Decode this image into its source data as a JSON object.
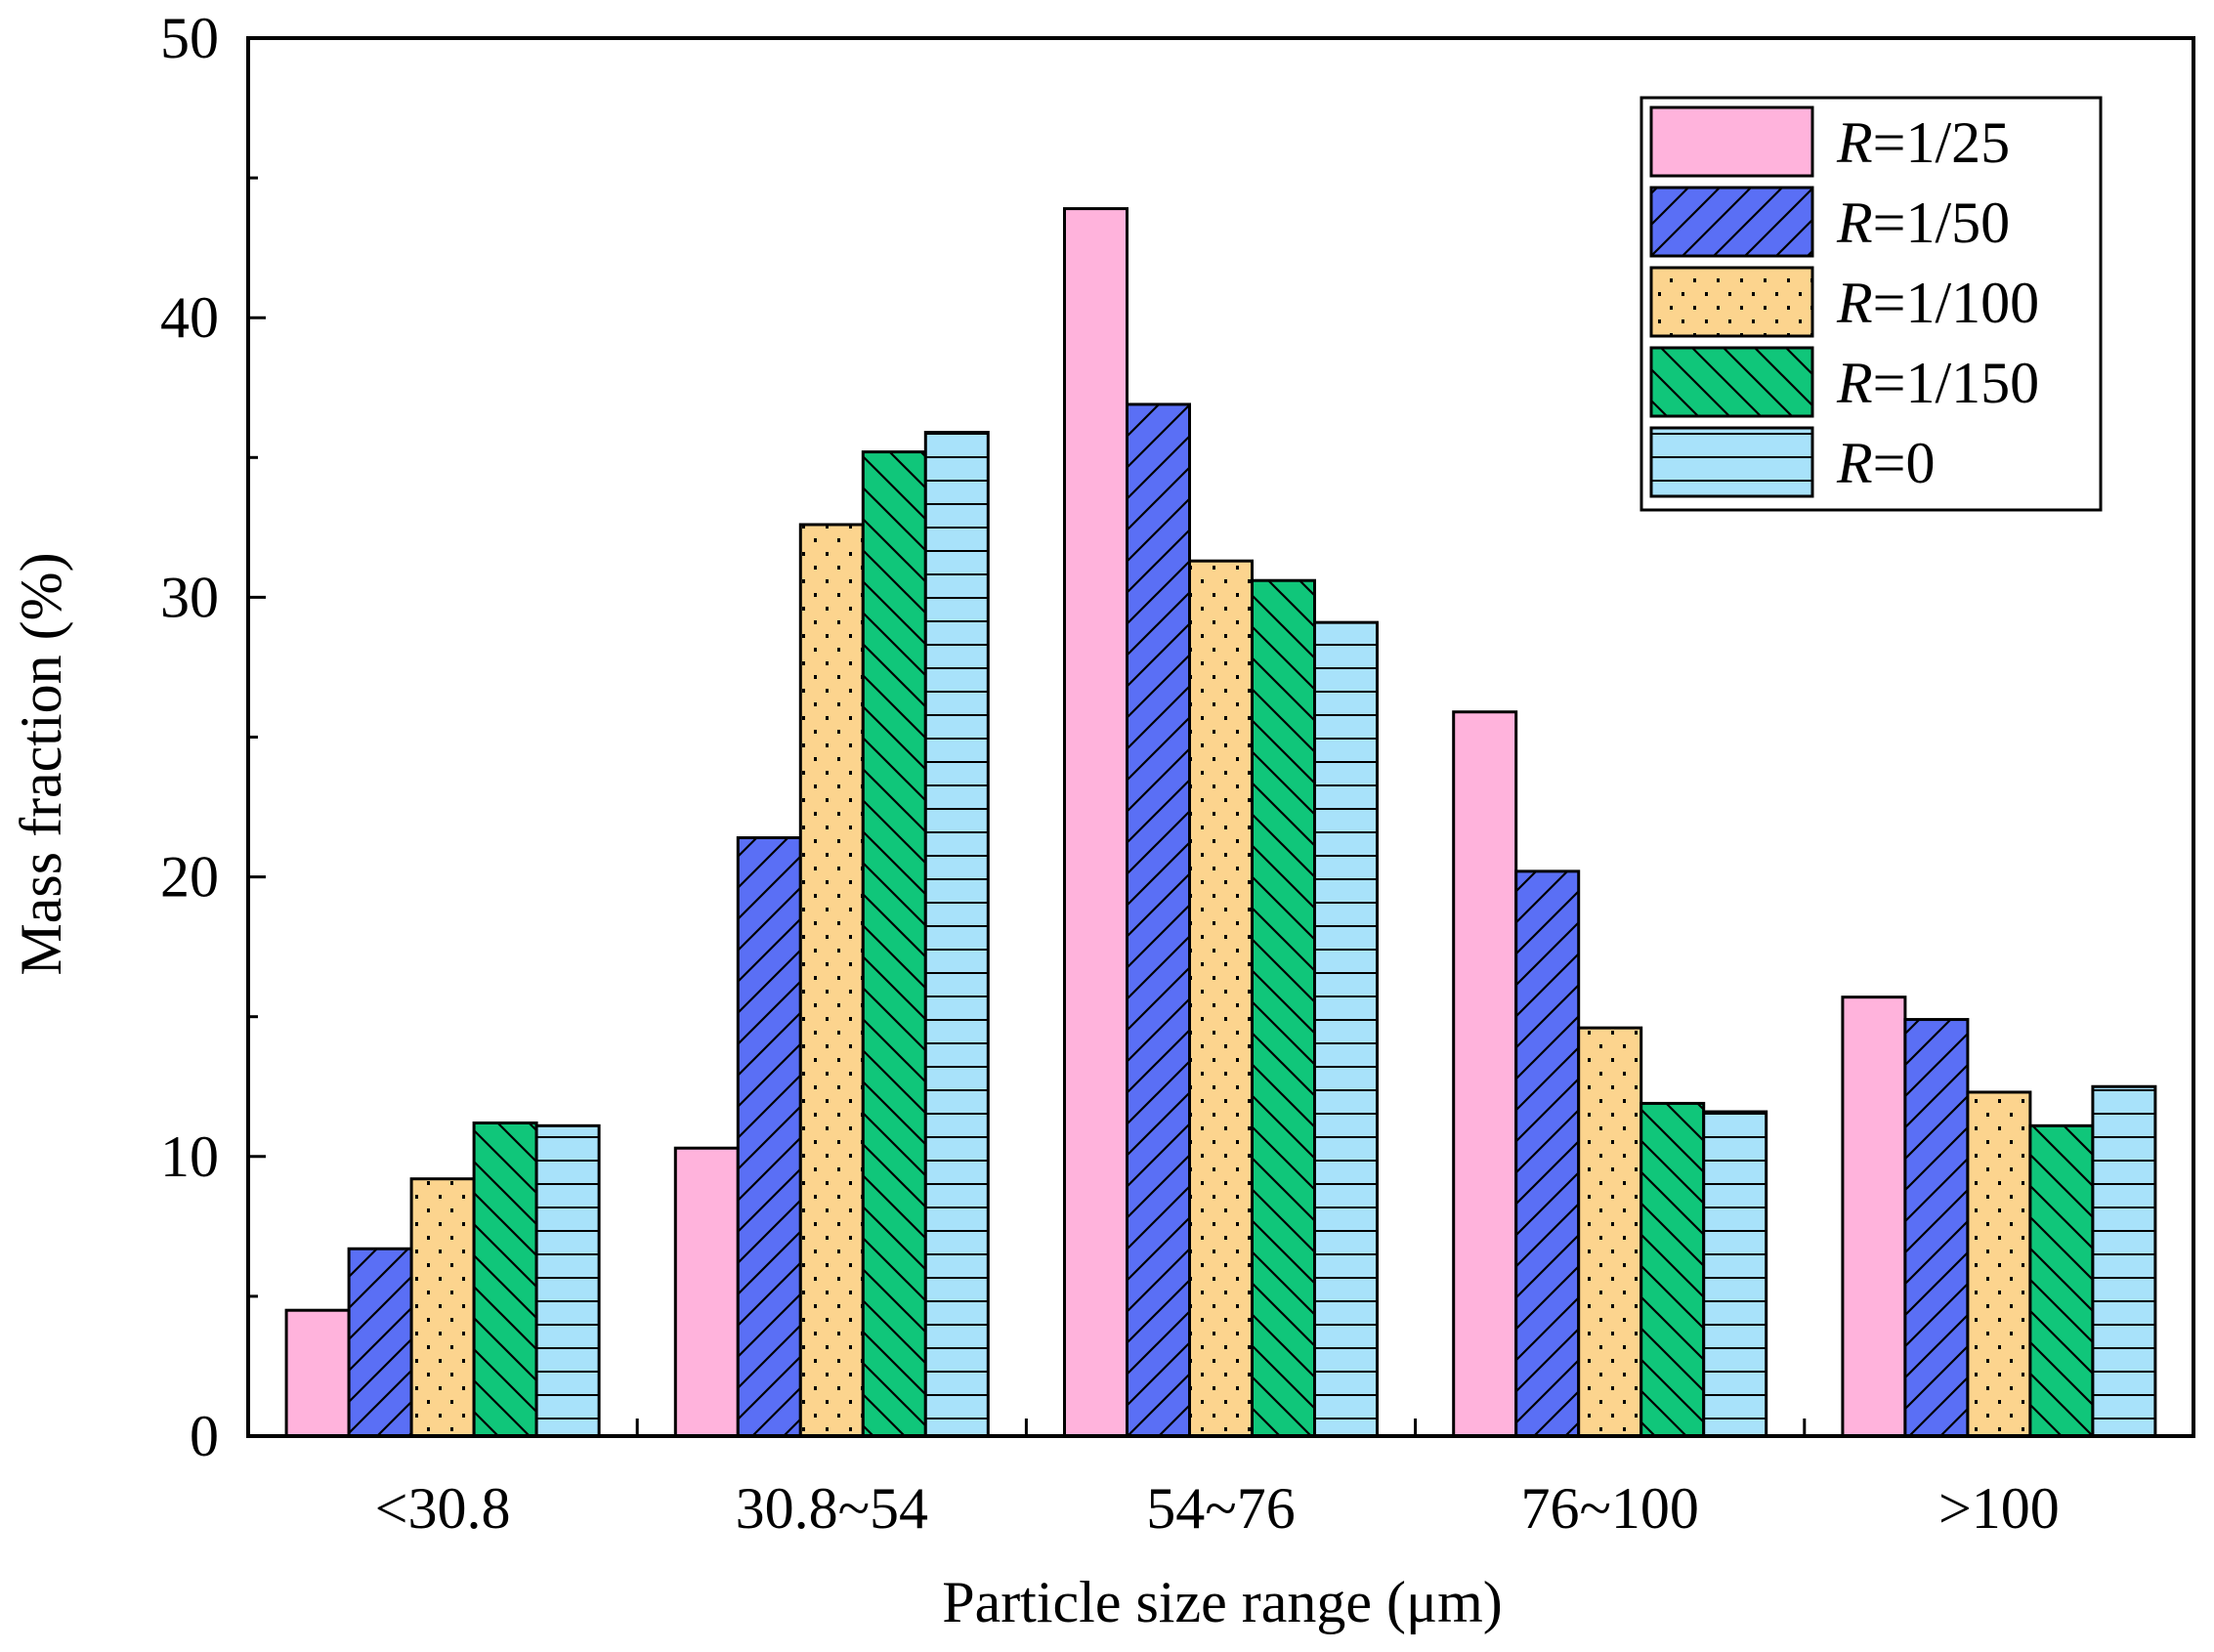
{
  "chart_data": {
    "type": "bar",
    "xlabel": "Particle size range (μm)",
    "ylabel": "Mass fraction (%)",
    "ylim": [
      0,
      50
    ],
    "yticks": [
      0,
      10,
      20,
      30,
      40,
      50
    ],
    "grid": false,
    "legend_position": "top-right",
    "categories": [
      "<30.8",
      "30.8~54",
      "54~76",
      "76~100",
      ">100"
    ],
    "series": [
      {
        "prefix": "R",
        "suffix": "=1/25",
        "name": "R=1/25",
        "color": "#ffb3dc",
        "pattern": "none",
        "values": [
          4.5,
          10.3,
          43.9,
          25.9,
          15.7
        ]
      },
      {
        "prefix": "R",
        "suffix": "=1/50",
        "name": "R=1/50",
        "color": "#5a6ff5",
        "pattern": "diag-up",
        "values": [
          6.7,
          21.4,
          36.9,
          20.2,
          14.9
        ]
      },
      {
        "prefix": "R",
        "suffix": "=1/100",
        "name": "R=1/100",
        "color": "#fcd48e",
        "pattern": "dots",
        "values": [
          9.2,
          32.6,
          31.3,
          14.6,
          12.3
        ]
      },
      {
        "prefix": "R",
        "suffix": "=1/150",
        "name": "R=1/150",
        "color": "#10c67a",
        "pattern": "diag-down",
        "values": [
          11.2,
          35.2,
          30.6,
          11.9,
          11.1
        ]
      },
      {
        "prefix": "R",
        "suffix": "=0",
        "name": "R=0",
        "color": "#a8e2fa",
        "pattern": "horiz",
        "values": [
          11.1,
          35.9,
          29.1,
          11.6,
          12.5
        ]
      }
    ]
  }
}
